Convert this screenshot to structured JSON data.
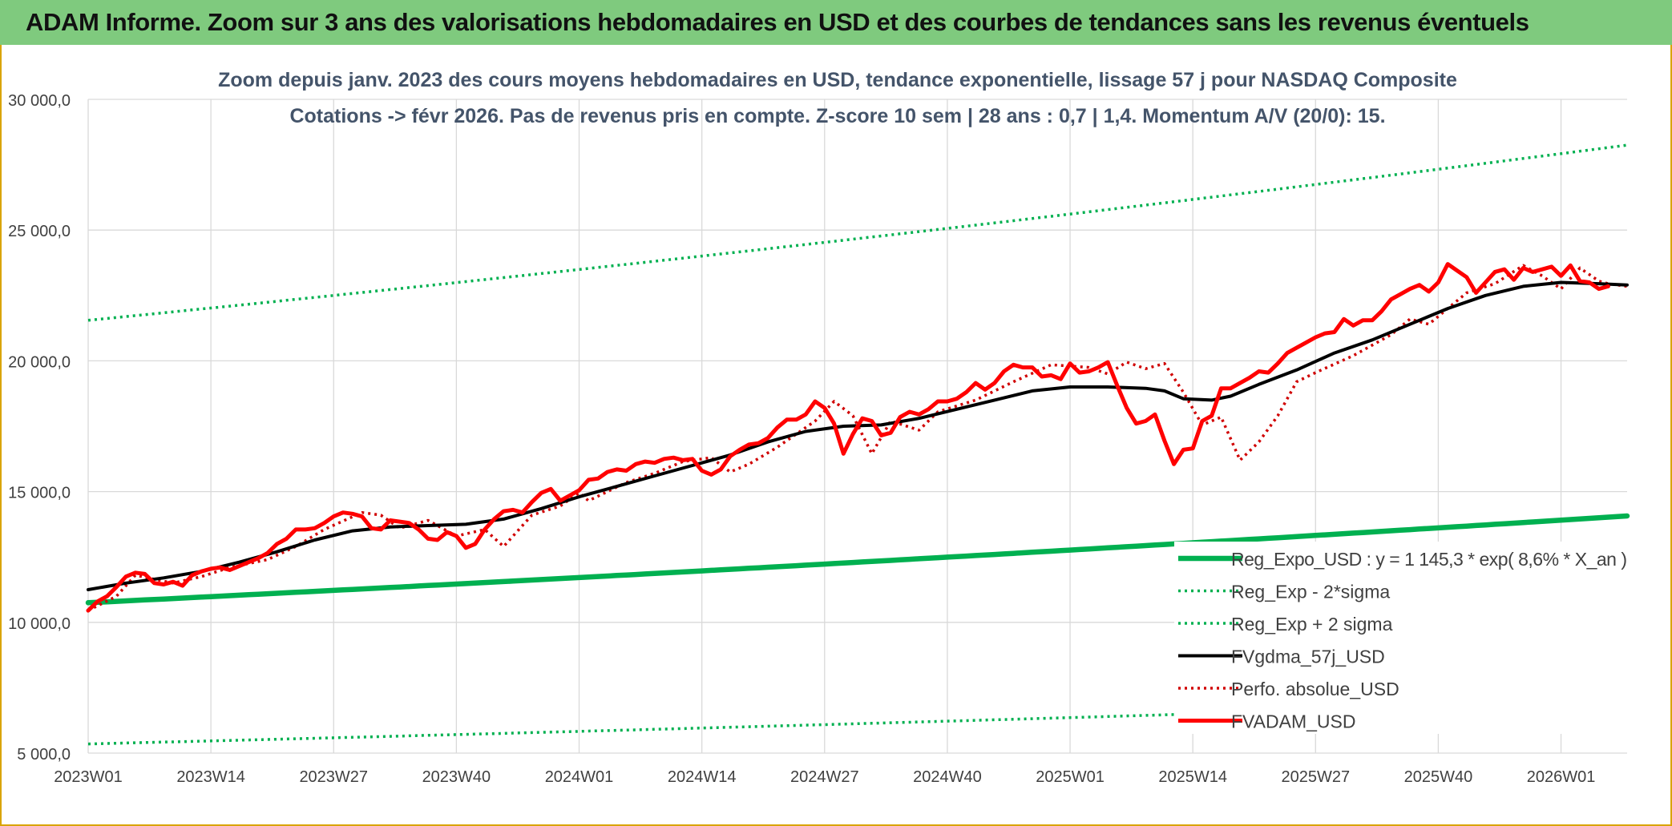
{
  "banner": {
    "title": "ADAM Informe. Zoom sur 3 ans des valorisations hebdomadaires en USD et des courbes de tendances sans les revenus éventuels",
    "color": "#7fca7e"
  },
  "chart_data": {
    "type": "line",
    "title": "Zoom depuis janv. 2023 des cours moyens hebdomadaires en USD, tendance exponentielle, lissage 57 j pour NASDAQ Composite",
    "subtitle": "Cotations -> févr 2026. Pas de revenus pris en compte. Z-score 10 sem | 28 ans : 0,7 | 1,4. Momentum A/V (20/0): 15.",
    "ylim": [
      5000,
      30000
    ],
    "y_ticks": [
      "5 000,0",
      "10 000,0",
      "15 000,0",
      "20 000,0",
      "25 000,0",
      "30 000,0"
    ],
    "x_ticks": [
      "2023W01",
      "2023W14",
      "2023W27",
      "2023W40",
      "2024W01",
      "2024W14",
      "2024W27",
      "2024W40",
      "2025W01",
      "2025W14",
      "2025W27",
      "2025W40",
      "2026W01"
    ],
    "x_tick_weeks": [
      0,
      13,
      26,
      39,
      52,
      65,
      78,
      91,
      104,
      117,
      130,
      143,
      156
    ],
    "x_weeks_total": 163,
    "grid": true,
    "legend_position": "bottom-right",
    "series": [
      {
        "name": "Reg_Expo_USD : y = 1 145,3 * exp( 8,6% *  X_an )",
        "style": "solid-thick",
        "color": "#00b050",
        "start": 10750,
        "end": 14070
      },
      {
        "name": "Reg_Exp - 2*sigma",
        "style": "dotted",
        "color": "#00b050",
        "start": 5350,
        "end": 7010
      },
      {
        "name": "Reg_Exp + 2 sigma",
        "style": "dotted",
        "color": "#00b050",
        "start": 21550,
        "end": 28250
      },
      {
        "name": "FVgdma_57j_USD",
        "style": "solid",
        "color": "#000000",
        "points": [
          [
            0,
            11250
          ],
          [
            4,
            11500
          ],
          [
            8,
            11700
          ],
          [
            12,
            11950
          ],
          [
            16,
            12300
          ],
          [
            20,
            12700
          ],
          [
            24,
            13150
          ],
          [
            28,
            13500
          ],
          [
            32,
            13650
          ],
          [
            36,
            13700
          ],
          [
            40,
            13750
          ],
          [
            44,
            13950
          ],
          [
            48,
            14350
          ],
          [
            52,
            14800
          ],
          [
            56,
            15200
          ],
          [
            60,
            15600
          ],
          [
            64,
            16000
          ],
          [
            68,
            16400
          ],
          [
            72,
            16900
          ],
          [
            76,
            17300
          ],
          [
            80,
            17500
          ],
          [
            84,
            17550
          ],
          [
            88,
            17800
          ],
          [
            92,
            18150
          ],
          [
            96,
            18500
          ],
          [
            100,
            18850
          ],
          [
            104,
            19000
          ],
          [
            108,
            19000
          ],
          [
            112,
            18950
          ],
          [
            114,
            18850
          ],
          [
            116,
            18550
          ],
          [
            119,
            18500
          ],
          [
            121,
            18650
          ],
          [
            124,
            19100
          ],
          [
            128,
            19650
          ],
          [
            132,
            20300
          ],
          [
            136,
            20800
          ],
          [
            140,
            21400
          ],
          [
            144,
            22000
          ],
          [
            148,
            22500
          ],
          [
            152,
            22850
          ],
          [
            156,
            23000
          ],
          [
            160,
            22950
          ],
          [
            163,
            22900
          ]
        ]
      },
      {
        "name": "Perfo. absolue_USD",
        "style": "dotted",
        "color": "#d00000",
        "points": [
          [
            0,
            10450
          ],
          [
            3,
            11000
          ],
          [
            5,
            11800
          ],
          [
            9,
            11500
          ],
          [
            12,
            11750
          ],
          [
            15,
            12100
          ],
          [
            19,
            12400
          ],
          [
            22,
            12900
          ],
          [
            25,
            13550
          ],
          [
            29,
            14200
          ],
          [
            31,
            14100
          ],
          [
            33,
            13600
          ],
          [
            36,
            13900
          ],
          [
            39,
            13300
          ],
          [
            42,
            13550
          ],
          [
            44,
            12900
          ],
          [
            47,
            14100
          ],
          [
            50,
            14450
          ],
          [
            52,
            14950
          ],
          [
            53,
            14650
          ],
          [
            57,
            15350
          ],
          [
            60,
            15700
          ],
          [
            63,
            16150
          ],
          [
            66,
            16300
          ],
          [
            68,
            15750
          ],
          [
            70,
            16050
          ],
          [
            73,
            16700
          ],
          [
            77,
            17700
          ],
          [
            79,
            18450
          ],
          [
            81,
            17900
          ],
          [
            83,
            16450
          ],
          [
            85,
            17700
          ],
          [
            88,
            17350
          ],
          [
            90,
            18050
          ],
          [
            94,
            18500
          ],
          [
            98,
            19200
          ],
          [
            102,
            19850
          ],
          [
            106,
            19750
          ],
          [
            108,
            19500
          ],
          [
            110,
            19950
          ],
          [
            112,
            19700
          ],
          [
            114,
            19900
          ],
          [
            116,
            18800
          ],
          [
            118,
            17550
          ],
          [
            120,
            17850
          ],
          [
            122,
            16200
          ],
          [
            124,
            16900
          ],
          [
            126,
            17900
          ],
          [
            128,
            19200
          ],
          [
            130,
            19550
          ],
          [
            134,
            20200
          ],
          [
            138,
            21000
          ],
          [
            140,
            21600
          ],
          [
            142,
            21400
          ],
          [
            146,
            22600
          ],
          [
            149,
            22950
          ],
          [
            152,
            23650
          ],
          [
            154,
            23250
          ],
          [
            156,
            22750
          ],
          [
            158,
            23550
          ],
          [
            160,
            23050
          ],
          [
            161,
            22950
          ],
          [
            163,
            22850
          ]
        ]
      },
      {
        "name": "FVADAM_USD",
        "style": "solid-thick",
        "color": "#ff0000",
        "points": [
          [
            0,
            10450
          ],
          [
            1,
            10800
          ],
          [
            2,
            11000
          ],
          [
            3,
            11350
          ],
          [
            4,
            11750
          ],
          [
            5,
            11900
          ],
          [
            6,
            11850
          ],
          [
            7,
            11500
          ],
          [
            8,
            11450
          ],
          [
            9,
            11550
          ],
          [
            10,
            11400
          ],
          [
            11,
            11800
          ],
          [
            12,
            11950
          ],
          [
            13,
            12050
          ],
          [
            14,
            12100
          ],
          [
            15,
            12000
          ],
          [
            16,
            12150
          ],
          [
            17,
            12300
          ],
          [
            18,
            12450
          ],
          [
            19,
            12650
          ],
          [
            20,
            13000
          ],
          [
            21,
            13200
          ],
          [
            22,
            13550
          ],
          [
            23,
            13550
          ],
          [
            24,
            13600
          ],
          [
            25,
            13800
          ],
          [
            26,
            14050
          ],
          [
            27,
            14200
          ],
          [
            28,
            14150
          ],
          [
            29,
            14050
          ],
          [
            30,
            13600
          ],
          [
            31,
            13550
          ],
          [
            32,
            13900
          ],
          [
            33,
            13850
          ],
          [
            34,
            13800
          ],
          [
            35,
            13550
          ],
          [
            36,
            13200
          ],
          [
            37,
            13150
          ],
          [
            38,
            13450
          ],
          [
            39,
            13300
          ],
          [
            40,
            12850
          ],
          [
            41,
            13000
          ],
          [
            42,
            13550
          ],
          [
            43,
            13950
          ],
          [
            44,
            14250
          ],
          [
            45,
            14300
          ],
          [
            46,
            14200
          ],
          [
            47,
            14600
          ],
          [
            48,
            14950
          ],
          [
            49,
            15100
          ],
          [
            50,
            14650
          ],
          [
            51,
            14850
          ],
          [
            52,
            15050
          ],
          [
            53,
            15450
          ],
          [
            54,
            15500
          ],
          [
            55,
            15750
          ],
          [
            56,
            15850
          ],
          [
            57,
            15800
          ],
          [
            58,
            16050
          ],
          [
            59,
            16150
          ],
          [
            60,
            16100
          ],
          [
            61,
            16250
          ],
          [
            62,
            16300
          ],
          [
            63,
            16200
          ],
          [
            64,
            16250
          ],
          [
            65,
            15800
          ],
          [
            66,
            15650
          ],
          [
            67,
            15850
          ],
          [
            68,
            16350
          ],
          [
            69,
            16600
          ],
          [
            70,
            16800
          ],
          [
            71,
            16850
          ],
          [
            72,
            17050
          ],
          [
            73,
            17450
          ],
          [
            74,
            17750
          ],
          [
            75,
            17750
          ],
          [
            76,
            17950
          ],
          [
            77,
            18450
          ],
          [
            78,
            18200
          ],
          [
            79,
            17600
          ],
          [
            80,
            16450
          ],
          [
            81,
            17200
          ],
          [
            82,
            17800
          ],
          [
            83,
            17700
          ],
          [
            84,
            17150
          ],
          [
            85,
            17250
          ],
          [
            86,
            17850
          ],
          [
            87,
            18050
          ],
          [
            88,
            17950
          ],
          [
            89,
            18150
          ],
          [
            90,
            18450
          ],
          [
            91,
            18450
          ],
          [
            92,
            18550
          ],
          [
            93,
            18800
          ],
          [
            94,
            19150
          ],
          [
            95,
            18900
          ],
          [
            96,
            19150
          ],
          [
            97,
            19600
          ],
          [
            98,
            19850
          ],
          [
            99,
            19750
          ],
          [
            100,
            19750
          ],
          [
            101,
            19400
          ],
          [
            102,
            19450
          ],
          [
            103,
            19300
          ],
          [
            104,
            19900
          ],
          [
            105,
            19550
          ],
          [
            106,
            19600
          ],
          [
            107,
            19750
          ],
          [
            108,
            19950
          ],
          [
            109,
            19050
          ],
          [
            110,
            18200
          ],
          [
            111,
            17600
          ],
          [
            112,
            17700
          ],
          [
            113,
            17950
          ],
          [
            114,
            16950
          ],
          [
            115,
            16050
          ],
          [
            116,
            16600
          ],
          [
            117,
            16650
          ],
          [
            118,
            17700
          ],
          [
            119,
            17900
          ],
          [
            120,
            18950
          ],
          [
            121,
            18950
          ],
          [
            122,
            19150
          ],
          [
            123,
            19350
          ],
          [
            124,
            19600
          ],
          [
            125,
            19550
          ],
          [
            126,
            19900
          ],
          [
            127,
            20300
          ],
          [
            128,
            20500
          ],
          [
            129,
            20700
          ],
          [
            130,
            20900
          ],
          [
            131,
            21050
          ],
          [
            132,
            21100
          ],
          [
            133,
            21600
          ],
          [
            134,
            21350
          ],
          [
            135,
            21550
          ],
          [
            136,
            21550
          ],
          [
            137,
            21900
          ],
          [
            138,
            22350
          ],
          [
            139,
            22550
          ],
          [
            140,
            22750
          ],
          [
            141,
            22900
          ],
          [
            142,
            22650
          ],
          [
            143,
            23000
          ],
          [
            144,
            23700
          ],
          [
            145,
            23450
          ],
          [
            146,
            23200
          ],
          [
            147,
            22600
          ],
          [
            148,
            23000
          ],
          [
            149,
            23400
          ],
          [
            150,
            23500
          ],
          [
            151,
            23100
          ],
          [
            152,
            23550
          ],
          [
            153,
            23400
          ],
          [
            154,
            23500
          ],
          [
            155,
            23600
          ],
          [
            156,
            23250
          ],
          [
            157,
            23650
          ],
          [
            158,
            23050
          ],
          [
            159,
            23000
          ],
          [
            160,
            22750
          ],
          [
            161,
            22850
          ]
        ]
      }
    ]
  }
}
